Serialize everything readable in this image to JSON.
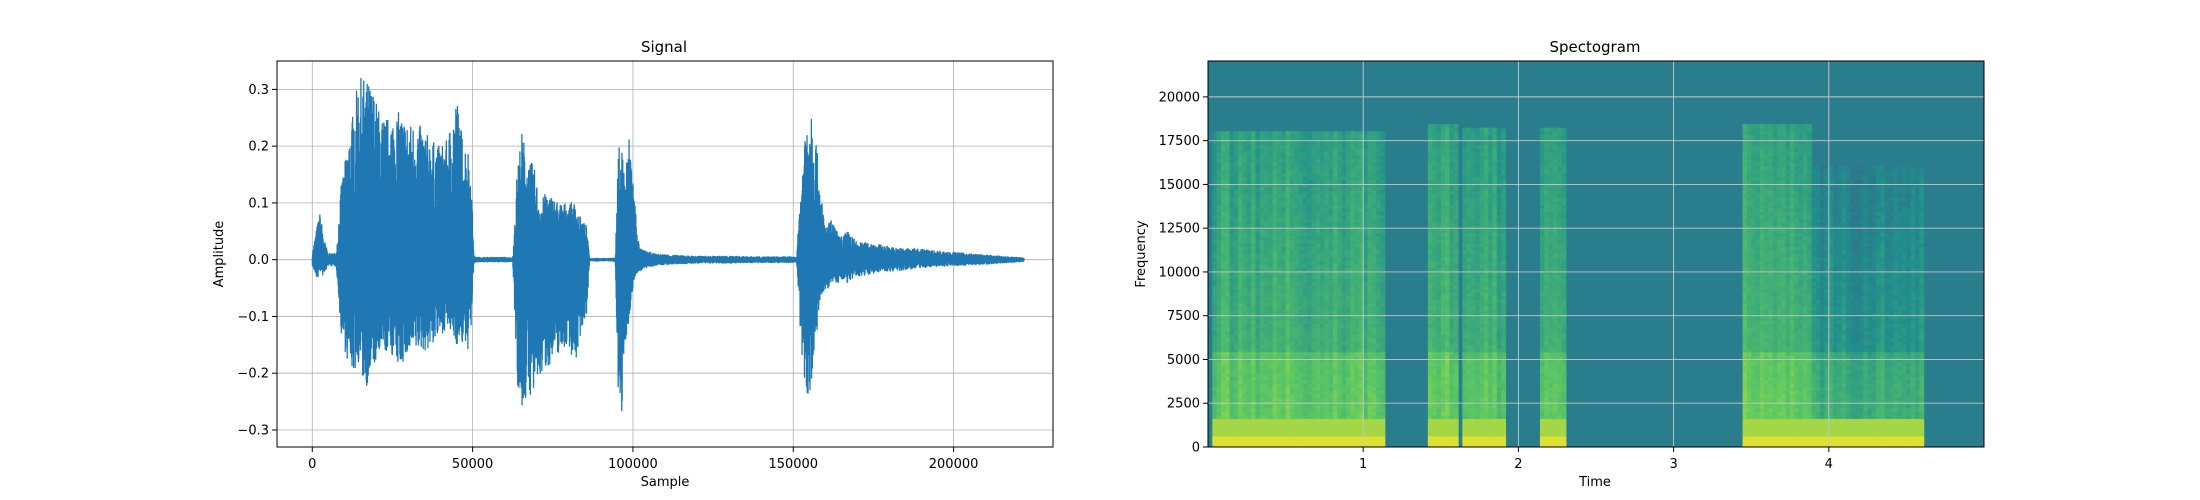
{
  "chart_data": [
    {
      "type": "line",
      "title": "Signal",
      "xlabel": "Sample",
      "ylabel": "Amplitude",
      "xlim": [
        -11000,
        231000
      ],
      "ylim": [
        -0.33,
        0.35
      ],
      "grid": true,
      "color": "#1f77b4",
      "x_ticks": [
        0,
        50000,
        100000,
        150000,
        200000
      ],
      "x_tick_labels": [
        "0",
        "50000",
        "100000",
        "150000",
        "200000"
      ],
      "y_ticks": [
        -0.3,
        -0.2,
        -0.1,
        0.0,
        0.1,
        0.2,
        0.3
      ],
      "y_tick_labels": [
        "−0.3",
        "−0.2",
        "−0.1",
        "0.0",
        "0.1",
        "0.2",
        "0.3"
      ],
      "envelope": {
        "x": [
          0,
          1500,
          2500,
          3500,
          5000,
          7500,
          9000,
          11000,
          13000,
          14500,
          16500,
          19000,
          21500,
          24000,
          27000,
          30000,
          33000,
          36000,
          39000,
          42000,
          45000,
          47000,
          48500,
          49500,
          50500,
          52000,
          54000,
          57000,
          60000,
          62500,
          64000,
          65500,
          67000,
          69000,
          71000,
          73000,
          75000,
          77500,
          80000,
          82000,
          84000,
          85500,
          86500,
          87500,
          88500,
          90000,
          92000,
          94500,
          95500,
          96500,
          97500,
          99000,
          100500,
          102000,
          104000,
          107000,
          112000,
          120000,
          130000,
          140000,
          145000,
          149000,
          151000,
          152500,
          154000,
          155500,
          157000,
          158500,
          160000,
          162000,
          164500,
          167000,
          170000,
          174000,
          178000,
          183000,
          188000,
          195000,
          202000,
          210000,
          217000,
          222000
        ],
        "upper": [
          0.01,
          0.06,
          0.085,
          0.04,
          0.01,
          0.012,
          0.13,
          0.2,
          0.27,
          0.32,
          0.32,
          0.3,
          0.25,
          0.25,
          0.26,
          0.24,
          0.24,
          0.22,
          0.2,
          0.21,
          0.29,
          0.21,
          0.2,
          0.15,
          0.005,
          0.004,
          0.004,
          0.004,
          0.004,
          0.003,
          0.17,
          0.23,
          0.17,
          0.17,
          0.1,
          0.12,
          0.11,
          0.1,
          0.1,
          0.1,
          0.07,
          0.06,
          0.002,
          0.002,
          0.003,
          0.002,
          0.002,
          0.003,
          0.2,
          0.21,
          0.15,
          0.23,
          0.11,
          0.02,
          0.015,
          0.01,
          0.008,
          0.006,
          0.006,
          0.005,
          0.005,
          0.005,
          0.004,
          0.14,
          0.26,
          0.29,
          0.22,
          0.12,
          0.06,
          0.07,
          0.04,
          0.05,
          0.03,
          0.03,
          0.025,
          0.02,
          0.02,
          0.015,
          0.012,
          0.008,
          0.005,
          0.003
        ],
        "lower": [
          -0.01,
          -0.035,
          -0.02,
          -0.03,
          -0.01,
          -0.012,
          -0.13,
          -0.18,
          -0.2,
          -0.18,
          -0.23,
          -0.19,
          -0.17,
          -0.16,
          -0.19,
          -0.17,
          -0.16,
          -0.16,
          -0.14,
          -0.12,
          -0.15,
          -0.15,
          -0.16,
          -0.12,
          -0.005,
          -0.004,
          -0.004,
          -0.004,
          -0.004,
          -0.003,
          -0.22,
          -0.27,
          -0.24,
          -0.24,
          -0.21,
          -0.19,
          -0.18,
          -0.16,
          -0.15,
          -0.19,
          -0.12,
          -0.1,
          -0.002,
          -0.002,
          -0.003,
          -0.002,
          -0.002,
          -0.003,
          -0.25,
          -0.29,
          -0.15,
          -0.1,
          -0.03,
          -0.02,
          -0.015,
          -0.01,
          -0.008,
          -0.006,
          -0.006,
          -0.005,
          -0.005,
          -0.005,
          -0.004,
          -0.16,
          -0.24,
          -0.23,
          -0.15,
          -0.07,
          -0.06,
          -0.04,
          -0.04,
          -0.04,
          -0.03,
          -0.025,
          -0.02,
          -0.02,
          -0.015,
          -0.012,
          -0.01,
          -0.008,
          -0.005,
          -0.003
        ]
      }
    },
    {
      "type": "heatmap",
      "title": "Spectogram",
      "xlabel": "Time",
      "ylabel": "Frequency",
      "xlim": [
        0.0,
        5.0
      ],
      "ylim": [
        0,
        22050
      ],
      "grid": true,
      "x_ticks": [
        1,
        2,
        3,
        4
      ],
      "x_tick_labels": [
        "1",
        "2",
        "3",
        "4"
      ],
      "y_ticks": [
        0,
        2500,
        5000,
        7500,
        10000,
        12500,
        15000,
        17500,
        20000
      ],
      "y_tick_labels": [
        "0",
        "2500",
        "5000",
        "7500",
        "10000",
        "12500",
        "15000",
        "17500",
        "20000"
      ],
      "colormap": [
        "#440154",
        "#3b528b",
        "#21918c",
        "#5ec962",
        "#fde725"
      ],
      "background_level": 0.42,
      "active_segments": [
        {
          "t": [
            0.03,
            1.13
          ],
          "level": 0.68,
          "top_freq": 18000
        },
        {
          "t": [
            1.43,
            1.61
          ],
          "level": 0.7,
          "top_freq": 18500
        },
        {
          "t": [
            1.63,
            1.92
          ],
          "level": 0.66,
          "top_freq": 18200
        },
        {
          "t": [
            2.13,
            2.3
          ],
          "level": 0.66,
          "top_freq": 18200
        },
        {
          "t": [
            3.45,
            3.9
          ],
          "level": 0.7,
          "top_freq": 18400
        },
        {
          "t": [
            3.9,
            4.6
          ],
          "level": 0.56,
          "top_freq": 16000
        }
      ]
    }
  ]
}
